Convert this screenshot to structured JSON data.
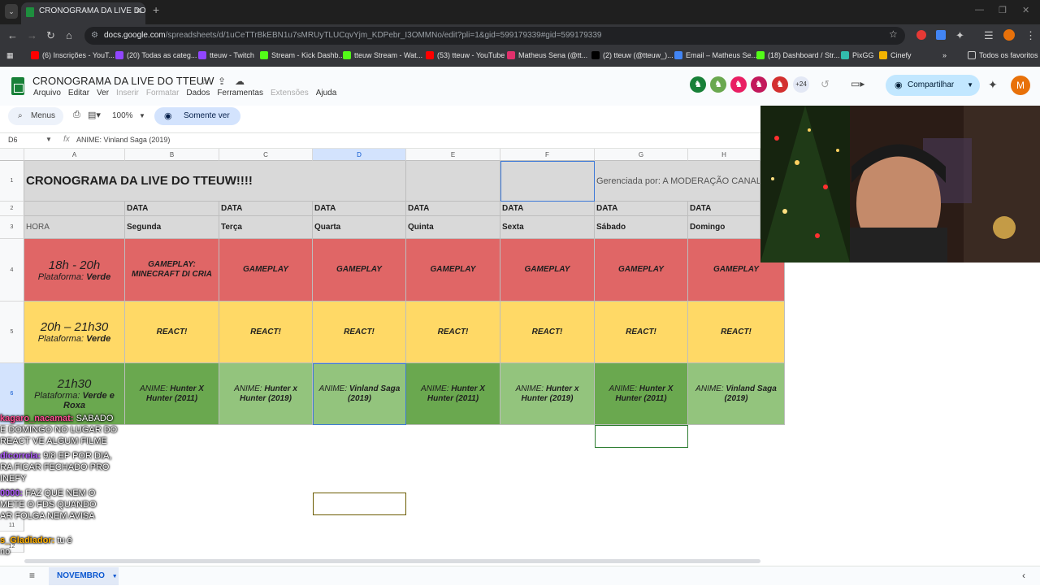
{
  "browser": {
    "tab_title": "CRONOGRAMA DA LIVE DO TTE",
    "url_host": "docs.google.com",
    "url_path": "/spreadsheets/d/1uCeTTrBkEBN1u7sMRUyTLUCqvYjm_KDPebr_I3OMMNo/edit?pli=1&gid=599179339#gid=599179339",
    "bookmarks": [
      {
        "label": "(6) Inscrições - YouT...",
        "color": "#ff0000"
      },
      {
        "label": "(20) Todas as categ...",
        "color": "#9146ff"
      },
      {
        "label": "tteuw - Twitch",
        "color": "#9146ff"
      },
      {
        "label": "Stream - Kick Dashb...",
        "color": "#53fc18"
      },
      {
        "label": "tteuw Stream - Wat...",
        "color": "#53fc18"
      },
      {
        "label": "(53) tteuw - YouTube",
        "color": "#ff0000"
      },
      {
        "label": "Matheus Sena (@tt...",
        "color": "#e1306c"
      },
      {
        "label": "(2) tteuw (@tteuw_)...",
        "color": "#000000"
      },
      {
        "label": "Email – Matheus Se...",
        "color": "#4285f4"
      },
      {
        "label": "(18) Dashboard / Str...",
        "color": "#53fc18"
      },
      {
        "label": "PixGG",
        "color": "#32bcad"
      },
      {
        "label": "Cinefy",
        "color": "#f4b400"
      }
    ],
    "all_favorites": "Todos os favoritos"
  },
  "sheets": {
    "title": "CRONOGRAMA DA LIVE DO TTEUW",
    "menu": [
      "Arquivo",
      "Editar",
      "Ver",
      "Inserir",
      "Formatar",
      "Dados",
      "Ferramentas",
      "Extensões",
      "Ajuda"
    ],
    "menu_disabled": [
      "Inserir",
      "Formatar",
      "Extensões"
    ],
    "collaborators_more": "+24",
    "share_label": "Compartilhar",
    "user_initial": "M",
    "search_label": "Menus",
    "zoom": "100%",
    "view_only": "Somente ver",
    "cell_ref": "D6",
    "formula": "ANIME: Vinland Saga (2019)",
    "sheet_tab": "NOVEMBRO"
  },
  "grid": {
    "columns": [
      "A",
      "B",
      "C",
      "D",
      "E",
      "F",
      "G",
      "H"
    ],
    "rows": [
      "1",
      "2",
      "3",
      "4",
      "5",
      "6",
      "11",
      "12"
    ],
    "title": "CRONOGRAMA DA LIVE DO TTEUW!!!!",
    "managed_by": "Gerenciada por: A MODERAÇÃO CANALH",
    "data_label": "DATA",
    "hora_label": "HORA",
    "days": [
      "Segunda",
      "Terça",
      "Quarta",
      "Quinta",
      "Sexta",
      "Sábado",
      "Domingo"
    ],
    "slots": [
      {
        "time": "18h - 20h",
        "platform_label": "Plataforma:",
        "platform": "Verde",
        "items": [
          "GAMEPLAY: MINECRAFT DI CRIA",
          "GAMEPLAY",
          "GAMEPLAY",
          "GAMEPLAY",
          "GAMEPLAY",
          "GAMEPLAY",
          "GAMEPLAY"
        ]
      },
      {
        "time": "20h – 21h30",
        "platform_label": "Plataforma:",
        "platform": "Verde",
        "items": [
          "REACT!",
          "REACT!",
          "REACT!",
          "REACT!",
          "REACT!",
          "REACT!",
          "REACT!"
        ]
      },
      {
        "time": "21h30",
        "platform_label": "Plataforma:",
        "platform": "Verde e Roxa",
        "items": [
          {
            "prefix": "ANIME:",
            "name": "Hunter X Hunter (2011)"
          },
          {
            "prefix": "ANIME:",
            "name": "Hunter x Hunter (2019)"
          },
          {
            "prefix": "ANIME:",
            "name": "Vinland Saga (2019)"
          },
          {
            "prefix": "ANIME:",
            "name": "Hunter X Hunter (2011)"
          },
          {
            "prefix": "ANIME:",
            "name": "Hunter x Hunter (2019)"
          },
          {
            "prefix": "ANIME:",
            "name": "Hunter X Hunter (2011)"
          },
          {
            "prefix": "ANIME:",
            "name": "Vinland Saga (2019)"
          }
        ]
      }
    ]
  },
  "chat": [
    {
      "user": "kagaro_nacamat:",
      "user_color": "#ff4f93",
      "lines": [
        "SABADO",
        "E DOMINGO NO LUGAR DO",
        "REACT VE ALGUM FILME"
      ]
    },
    {
      "user": "dicorreia:",
      "user_color": "#b05bff",
      "lines": [
        "9/8 EP POR DIA,",
        "RA FICAR FECHADO PRO",
        "INEFY"
      ]
    },
    {
      "user": "0000:",
      "user_color": "#b05bff",
      "lines": [
        "FAZ QUE NEM O",
        "METE O FDS QUANDO",
        "AR FOLGA NEM AVISA"
      ]
    },
    {
      "user": "s_Gladiador:",
      "user_color": "#ffb000",
      "lines": [
        "tu é",
        "no"
      ]
    }
  ],
  "colors": {
    "red_row": "#e06666",
    "yellow_row": "#ffd966",
    "green_row": "#93c47d",
    "dark_green": "#6aa84f",
    "header_gray": "#d9d9d9"
  }
}
